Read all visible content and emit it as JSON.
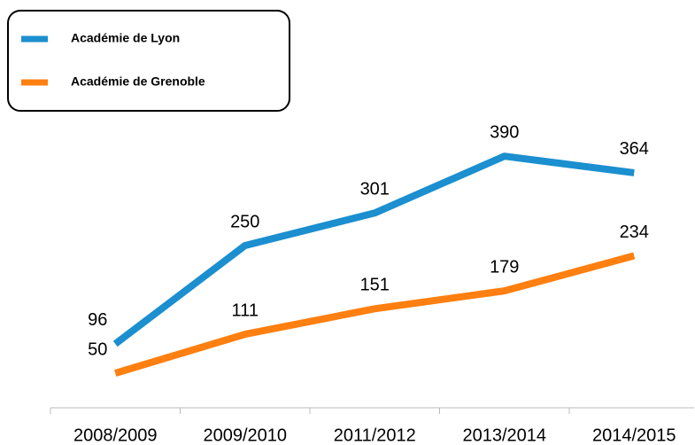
{
  "chart_data": {
    "type": "line",
    "categories": [
      "2008/2009",
      "2009/2010",
      "2011/2012",
      "2013/2014",
      "2014/2015"
    ],
    "series": [
      {
        "name": "Académie de Lyon",
        "color": "#1b8fcf",
        "values": [
          96,
          250,
          301,
          390,
          364
        ]
      },
      {
        "name": "Académie de Grenoble",
        "color": "#ff7f10",
        "values": [
          50,
          111,
          151,
          179,
          234
        ]
      }
    ],
    "ylim": [
      0,
      450
    ]
  }
}
